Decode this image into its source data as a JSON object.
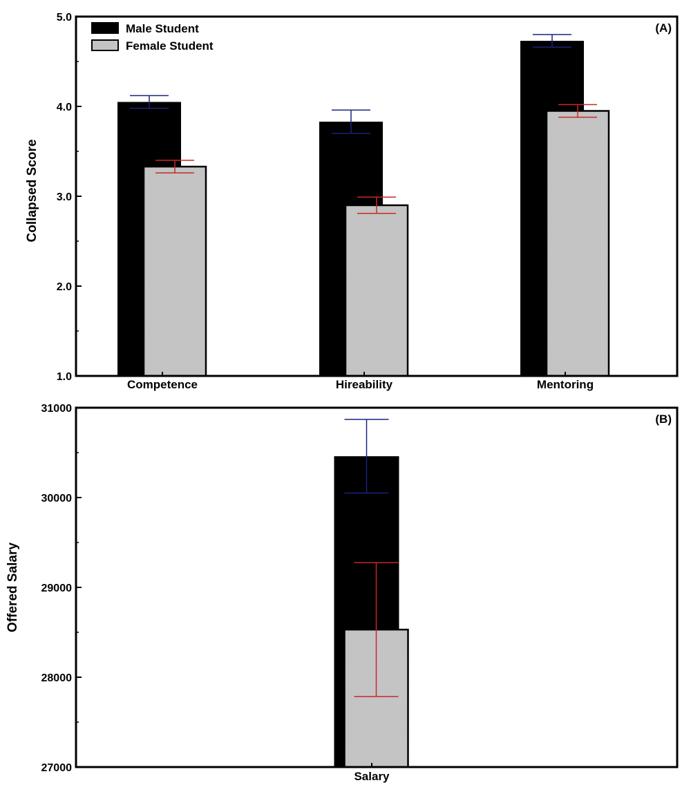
{
  "chart_data": [
    {
      "type": "bar",
      "panel_label": "(A)",
      "ylabel": "Collapsed Score",
      "ylim": [
        1.0,
        5.0
      ],
      "yticks": [
        1.0,
        2.0,
        3.0,
        4.0,
        5.0
      ],
      "ytick_labels": [
        "1.0",
        "2.0",
        "3.0",
        "4.0",
        "5.0"
      ],
      "categories": [
        "Competence",
        "Hireability",
        "Mentoring"
      ],
      "series": [
        {
          "name": "Male Student",
          "values": [
            4.05,
            3.83,
            4.73
          ],
          "error": [
            0.07,
            0.13,
            0.07
          ],
          "color": "#000000",
          "error_color": "#1a237e"
        },
        {
          "name": "Female Student",
          "values": [
            3.33,
            2.9,
            3.95
          ],
          "error": [
            0.07,
            0.09,
            0.07
          ],
          "color": "#c4c4c4",
          "error_color": "#c62828"
        }
      ],
      "legend": "top-left"
    },
    {
      "type": "bar",
      "panel_label": "(B)",
      "ylabel": "Offered Salary",
      "ylim": [
        27000,
        31000
      ],
      "yticks": [
        27000,
        28000,
        29000,
        30000,
        31000
      ],
      "ytick_labels": [
        "27000",
        "28000",
        "29000",
        "30000",
        "31000"
      ],
      "categories": [
        "Salary"
      ],
      "series": [
        {
          "name": "Male Student",
          "values": [
            30460
          ],
          "error": [
            410
          ],
          "color": "#000000",
          "error_color": "#1a237e"
        },
        {
          "name": "Female Student",
          "values": [
            28530
          ],
          "error": [
            745
          ],
          "color": "#c4c4c4",
          "error_color": "#c62828"
        }
      ]
    }
  ]
}
